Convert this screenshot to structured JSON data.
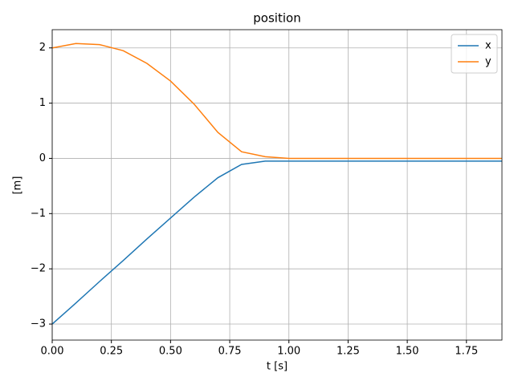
{
  "chart_data": {
    "type": "line",
    "title": "position",
    "x_label": "t [s]",
    "y_label": "[m]",
    "x": [
      0,
      0.1,
      0.2,
      0.3,
      0.4,
      0.5,
      0.6,
      0.7,
      0.8,
      0.9,
      1.0,
      1.1,
      1.2,
      1.3,
      1.4,
      1.5,
      1.6,
      1.7,
      1.8,
      1.9
    ],
    "series": [
      {
        "name": "x",
        "color": "#1f77b4",
        "values": [
          -3.0,
          -2.62,
          -2.23,
          -1.85,
          -1.46,
          -1.08,
          -0.7,
          -0.35,
          -0.11,
          -0.05,
          -0.05,
          -0.05,
          -0.05,
          -0.05,
          -0.05,
          -0.05,
          -0.05,
          -0.05,
          -0.05,
          -0.05
        ]
      },
      {
        "name": "y",
        "color": "#ff7f0e",
        "values": [
          2.0,
          2.08,
          2.06,
          1.95,
          1.72,
          1.4,
          0.98,
          0.47,
          0.12,
          0.03,
          0.0,
          0.0,
          0.0,
          0.0,
          0.0,
          0.0,
          0.0,
          0.0,
          0.0,
          0.0
        ]
      }
    ],
    "xlim": [
      0,
      1.9
    ],
    "ylim": [
      -3.29,
      2.33
    ],
    "xticks": [
      {
        "value": 0,
        "label": "0.00"
      },
      {
        "value": 0.25,
        "label": "0.25"
      },
      {
        "value": 0.5,
        "label": "0.50"
      },
      {
        "value": 0.75,
        "label": "0.75"
      },
      {
        "value": 1.0,
        "label": "1.00"
      },
      {
        "value": 1.25,
        "label": "1.25"
      },
      {
        "value": 1.5,
        "label": "1.50"
      },
      {
        "value": 1.75,
        "label": "1.75"
      }
    ],
    "yticks": [
      {
        "value": -3,
        "label": "−3"
      },
      {
        "value": -2,
        "label": "−2"
      },
      {
        "value": -1,
        "label": "−1"
      },
      0,
      1,
      2
    ],
    "grid": true,
    "legend": "upper-right"
  }
}
